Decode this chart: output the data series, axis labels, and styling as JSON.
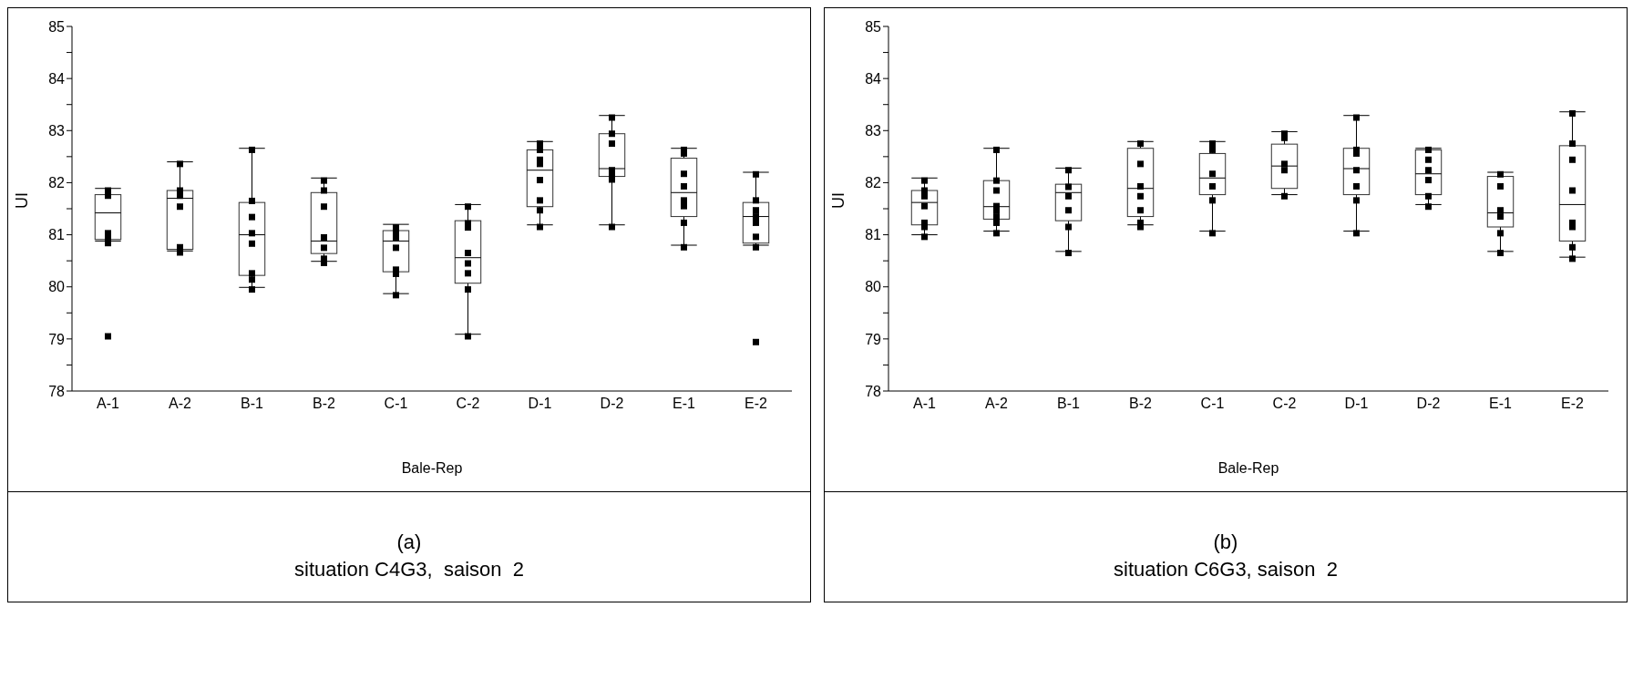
{
  "chart_data": [
    {
      "type": "box",
      "xlabel": "Bale-Rep",
      "ylabel": "UI",
      "categories": [
        "A-1",
        "A-2",
        "B-1",
        "B-2",
        "C-1",
        "C-2",
        "D-1",
        "D-2",
        "E-1",
        "E-2"
      ],
      "boxes": [
        {
          "low": 80.88,
          "q1": 80.91,
          "median": 81.42,
          "q3": 81.77,
          "high": 81.89,
          "outliers": [
            79.05
          ]
        },
        {
          "low": 80.69,
          "q1": 80.72,
          "median": 81.7,
          "q3": 81.85,
          "high": 82.4
        },
        {
          "low": 79.99,
          "q1": 80.22,
          "median": 81.0,
          "q3": 81.62,
          "high": 82.66
        },
        {
          "low": 80.49,
          "q1": 80.64,
          "median": 80.88,
          "q3": 81.81,
          "high": 82.09
        },
        {
          "low": 79.87,
          "q1": 80.29,
          "median": 80.88,
          "q3": 81.08,
          "high": 81.2
        },
        {
          "low": 79.09,
          "q1": 80.07,
          "median": 80.56,
          "q3": 81.27,
          "high": 81.58
        },
        {
          "low": 81.19,
          "q1": 81.54,
          "median": 82.24,
          "q3": 82.63,
          "high": 82.79
        },
        {
          "low": 81.19,
          "q1": 82.12,
          "median": 82.27,
          "q3": 82.94,
          "high": 83.29
        },
        {
          "low": 80.8,
          "q1": 81.35,
          "median": 81.81,
          "q3": 82.47,
          "high": 82.66
        },
        {
          "low": 80.8,
          "q1": 80.84,
          "median": 81.35,
          "q3": 81.62,
          "high": 82.2,
          "outliers": [
            78.94
          ]
        }
      ],
      "series": [
        {
          "type": "scatter",
          "color": "#000000",
          "marker": "square",
          "x": [
            "A-1",
            "A-1",
            "A-1",
            "A-1",
            "A-1",
            "A-2",
            "A-2",
            "A-2",
            "A-2",
            "A-2",
            "A-2",
            "B-1",
            "B-1",
            "B-1",
            "B-1",
            "B-1",
            "B-1",
            "B-1",
            "B-1",
            "B-2",
            "B-2",
            "B-2",
            "B-2",
            "B-2",
            "B-2",
            "B-2",
            "C-1",
            "C-1",
            "C-1",
            "C-1",
            "C-1",
            "C-1",
            "C-1",
            "C-2",
            "C-2",
            "C-2",
            "C-2",
            "C-2",
            "C-2",
            "C-2",
            "C-2",
            "D-1",
            "D-1",
            "D-1",
            "D-1",
            "D-1",
            "D-1",
            "D-1",
            "D-1",
            "D-2",
            "D-2",
            "D-2",
            "D-2",
            "D-2",
            "D-2",
            "D-2",
            "E-1",
            "E-1",
            "E-1",
            "E-1",
            "E-1",
            "E-1",
            "E-1",
            "E-1",
            "E-2",
            "E-2",
            "E-2",
            "E-2",
            "E-2",
            "E-2",
            "E-2"
          ],
          "values": [
            81.85,
            81.75,
            81.03,
            80.95,
            80.84,
            82.36,
            81.85,
            81.75,
            81.54,
            80.76,
            80.66,
            82.63,
            81.65,
            81.34,
            81.03,
            80.83,
            80.26,
            80.14,
            79.95,
            82.04,
            81.85,
            81.54,
            80.95,
            80.75,
            80.54,
            80.46,
            81.14,
            81.06,
            80.95,
            80.75,
            80.33,
            80.25,
            79.84,
            81.54,
            81.22,
            81.14,
            80.65,
            80.45,
            80.26,
            79.95,
            79.05,
            82.75,
            82.63,
            82.44,
            82.36,
            82.05,
            81.66,
            81.47,
            81.15,
            83.25,
            82.94,
            82.75,
            82.24,
            82.17,
            82.06,
            81.15,
            82.63,
            82.56,
            82.17,
            81.93,
            81.66,
            81.55,
            81.23,
            80.76,
            82.16,
            81.66,
            81.47,
            81.35,
            81.23,
            80.96,
            80.76
          ]
        }
      ],
      "ylim": [
        78,
        85
      ],
      "yticks": [
        78,
        {
          "value": 78.5,
          "label": null
        },
        79,
        {
          "value": 79.5,
          "label": null
        },
        80,
        {
          "value": 80.5,
          "label": null
        },
        81,
        {
          "value": 81.5,
          "label": null
        },
        82,
        {
          "value": 82.5,
          "label": null
        },
        83,
        {
          "value": 83.5,
          "label": null
        },
        84,
        {
          "value": 84.5,
          "label": null
        },
        85
      ],
      "annotations": [
        "(a)",
        "situation C4G3,  saison  2"
      ]
    },
    {
      "type": "box",
      "xlabel": "Bale-Rep",
      "ylabel": "UI",
      "categories": [
        "A-1",
        "A-2",
        "B-1",
        "B-2",
        "C-1",
        "C-2",
        "D-1",
        "D-2",
        "E-1",
        "E-2"
      ],
      "boxes": [
        {
          "low": 81.0,
          "q1": 81.19,
          "median": 81.62,
          "q3": 81.85,
          "high": 82.09
        },
        {
          "low": 81.07,
          "q1": 81.3,
          "median": 81.54,
          "q3": 82.04,
          "high": 82.66
        },
        {
          "low": 80.68,
          "q1": 81.27,
          "median": 81.81,
          "q3": 81.97,
          "high": 82.28
        },
        {
          "low": 81.19,
          "q1": 81.35,
          "median": 81.89,
          "q3": 82.66,
          "high": 82.79
        },
        {
          "low": 81.07,
          "q1": 81.77,
          "median": 82.09,
          "q3": 82.56,
          "high": 82.79
        },
        {
          "low": 81.77,
          "q1": 81.89,
          "median": 82.32,
          "q3": 82.74,
          "high": 82.98
        },
        {
          "low": 81.07,
          "q1": 81.77,
          "median": 82.27,
          "q3": 82.66,
          "high": 83.29
        },
        {
          "low": 81.58,
          "q1": 81.77,
          "median": 82.17,
          "q3": 82.63,
          "high": 82.66
        },
        {
          "low": 80.68,
          "q1": 81.15,
          "median": 81.42,
          "q3": 82.12,
          "high": 82.2
        },
        {
          "low": 80.57,
          "q1": 80.88,
          "median": 81.58,
          "q3": 82.71,
          "high": 83.36
        }
      ],
      "series": [
        {
          "type": "scatter",
          "color": "#000000",
          "marker": "square",
          "x": [
            "A-1",
            "A-1",
            "A-1",
            "A-1",
            "A-1",
            "A-1",
            "A-1",
            "A-2",
            "A-2",
            "A-2",
            "A-2",
            "A-2",
            "A-2",
            "A-2",
            "A-2",
            "B-1",
            "B-1",
            "B-1",
            "B-1",
            "B-1",
            "B-1",
            "B-2",
            "B-2",
            "B-2",
            "B-2",
            "B-2",
            "B-2",
            "B-2",
            "C-1",
            "C-1",
            "C-1",
            "C-1",
            "C-1",
            "C-1",
            "C-2",
            "C-2",
            "C-2",
            "C-2",
            "C-2",
            "D-1",
            "D-1",
            "D-1",
            "D-1",
            "D-1",
            "D-1",
            "D-1",
            "D-2",
            "D-2",
            "D-2",
            "D-2",
            "D-2",
            "D-2",
            "E-1",
            "E-1",
            "E-1",
            "E-1",
            "E-1",
            "E-1",
            "E-2",
            "E-2",
            "E-2",
            "E-2",
            "E-2",
            "E-2",
            "E-2",
            "E-2"
          ],
          "values": [
            82.04,
            81.85,
            81.74,
            81.55,
            81.23,
            81.15,
            80.96,
            82.63,
            82.04,
            81.85,
            81.55,
            81.47,
            81.35,
            81.23,
            81.03,
            82.24,
            81.92,
            81.74,
            81.47,
            81.15,
            80.65,
            82.75,
            82.36,
            81.93,
            81.74,
            81.47,
            81.23,
            81.15,
            82.75,
            82.63,
            82.17,
            81.93,
            81.66,
            81.03,
            82.94,
            82.86,
            82.36,
            82.24,
            81.74,
            83.25,
            82.63,
            82.56,
            82.24,
            81.93,
            81.66,
            81.03,
            82.63,
            82.44,
            82.24,
            82.05,
            81.74,
            81.54,
            82.16,
            81.93,
            81.47,
            81.35,
            81.03,
            80.65,
            83.33,
            82.75,
            82.44,
            81.85,
            81.23,
            81.15,
            80.76,
            80.54
          ]
        }
      ],
      "ylim": [
        78,
        85
      ],
      "yticks": [
        78,
        {
          "value": 78.5,
          "label": null
        },
        79,
        {
          "value": 79.5,
          "label": null
        },
        80,
        {
          "value": 80.5,
          "label": null
        },
        81,
        {
          "value": 81.5,
          "label": null
        },
        82,
        {
          "value": 82.5,
          "label": null
        },
        83,
        {
          "value": 83.5,
          "label": null
        },
        84,
        {
          "value": 84.5,
          "label": null
        },
        85
      ],
      "annotations": [
        "(b)",
        "situation C6G3, saison  2"
      ]
    }
  ]
}
